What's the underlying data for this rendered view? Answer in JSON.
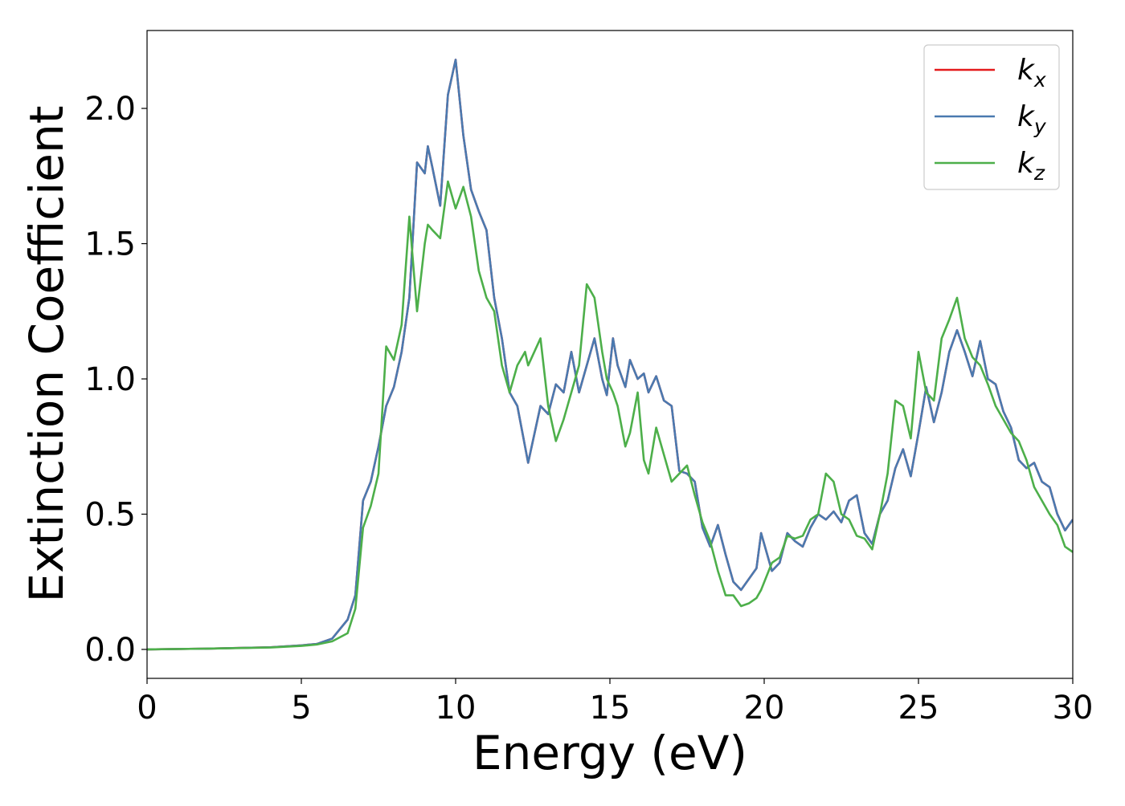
{
  "chart_data": {
    "type": "line",
    "xlabel": "Energy (eV)",
    "ylabel": "Extinction Coefficient",
    "xlim": [
      0,
      30
    ],
    "xticks": [
      0,
      5,
      10,
      15,
      20,
      25,
      30
    ],
    "ylim": [
      -0.107,
      2.288
    ],
    "yticks": [
      {
        "value": 0,
        "label": "0.0"
      },
      0.5,
      {
        "value": 1,
        "label": "1.0"
      },
      1.5,
      {
        "value": 2,
        "label": "2.0"
      }
    ],
    "legend": "upper right",
    "x": [
      0,
      2,
      4,
      5,
      5.5,
      6,
      6.5,
      6.75,
      7,
      7.25,
      7.5,
      7.75,
      8,
      8.25,
      8.5,
      8.75,
      9,
      9.1,
      9.25,
      9.5,
      9.75,
      10,
      10.25,
      10.5,
      10.75,
      11,
      11.25,
      11.5,
      11.75,
      12,
      12.25,
      12.35,
      12.75,
      13,
      13.25,
      13.5,
      13.75,
      14,
      14.25,
      14.5,
      14.75,
      14.9,
      15.1,
      15.25,
      15.5,
      15.65,
      15.9,
      16.1,
      16.25,
      16.5,
      16.75,
      17,
      17.25,
      17.5,
      17.75,
      18,
      18.25,
      18.5,
      18.75,
      19,
      19.25,
      19.5,
      19.75,
      19.9,
      20.25,
      20.5,
      20.75,
      21,
      21.25,
      21.5,
      21.75,
      22,
      22.25,
      22.5,
      22.75,
      23,
      23.25,
      23.5,
      23.75,
      24,
      24.25,
      24.5,
      24.75,
      25,
      25.25,
      25.5,
      25.75,
      26,
      26.25,
      26.5,
      26.75,
      27,
      27.25,
      27.5,
      27.75,
      28,
      28.25,
      28.5,
      28.75,
      29,
      29.25,
      29.5,
      29.75,
      30
    ],
    "series": [
      {
        "name": "kx",
        "color": "#e41a1c",
        "values": [
          0,
          0.003,
          0.008,
          0.015,
          0.02,
          0.04,
          0.11,
          0.2,
          0.55,
          0.62,
          0.75,
          0.9,
          0.97,
          1.1,
          1.3,
          1.8,
          1.76,
          1.86,
          1.78,
          1.64,
          2.05,
          2.18,
          1.9,
          1.7,
          1.62,
          1.55,
          1.3,
          1.15,
          0.95,
          0.9,
          0.75,
          0.69,
          0.9,
          0.87,
          0.98,
          0.95,
          1.1,
          0.95,
          1.05,
          1.15,
          1.0,
          0.94,
          1.15,
          1.05,
          0.97,
          1.07,
          1.0,
          1.02,
          0.95,
          1.01,
          0.92,
          0.9,
          0.66,
          0.65,
          0.62,
          0.45,
          0.38,
          0.46,
          0.35,
          0.25,
          0.22,
          0.26,
          0.3,
          0.43,
          0.29,
          0.32,
          0.43,
          0.4,
          0.38,
          0.45,
          0.5,
          0.48,
          0.51,
          0.47,
          0.55,
          0.57,
          0.43,
          0.39,
          0.5,
          0.55,
          0.67,
          0.74,
          0.64,
          0.8,
          0.97,
          0.84,
          0.95,
          1.1,
          1.18,
          1.1,
          1.01,
          1.14,
          1.0,
          0.98,
          0.88,
          0.82,
          0.7,
          0.67,
          0.69,
          0.62,
          0.6,
          0.5,
          0.44,
          0.48
        ]
      },
      {
        "name": "ky",
        "color": "#4a7ab0",
        "values": [
          0,
          0.003,
          0.008,
          0.015,
          0.02,
          0.04,
          0.11,
          0.2,
          0.55,
          0.62,
          0.75,
          0.9,
          0.97,
          1.1,
          1.3,
          1.8,
          1.76,
          1.86,
          1.78,
          1.64,
          2.05,
          2.18,
          1.9,
          1.7,
          1.62,
          1.55,
          1.3,
          1.15,
          0.95,
          0.9,
          0.75,
          0.69,
          0.9,
          0.87,
          0.98,
          0.95,
          1.1,
          0.95,
          1.05,
          1.15,
          1.0,
          0.94,
          1.15,
          1.05,
          0.97,
          1.07,
          1.0,
          1.02,
          0.95,
          1.01,
          0.92,
          0.9,
          0.66,
          0.65,
          0.62,
          0.45,
          0.38,
          0.46,
          0.35,
          0.25,
          0.22,
          0.26,
          0.3,
          0.43,
          0.29,
          0.32,
          0.43,
          0.4,
          0.38,
          0.45,
          0.5,
          0.48,
          0.51,
          0.47,
          0.55,
          0.57,
          0.43,
          0.39,
          0.5,
          0.55,
          0.67,
          0.74,
          0.64,
          0.8,
          0.97,
          0.84,
          0.95,
          1.1,
          1.18,
          1.1,
          1.01,
          1.14,
          1.0,
          0.98,
          0.88,
          0.82,
          0.7,
          0.67,
          0.69,
          0.62,
          0.6,
          0.5,
          0.44,
          0.48
        ]
      },
      {
        "name": "kz",
        "color": "#4daf4a",
        "values": [
          0,
          0.003,
          0.007,
          0.013,
          0.018,
          0.03,
          0.06,
          0.15,
          0.45,
          0.53,
          0.65,
          1.12,
          1.07,
          1.2,
          1.6,
          1.25,
          1.5,
          1.57,
          1.55,
          1.52,
          1.73,
          1.63,
          1.71,
          1.6,
          1.4,
          1.3,
          1.25,
          1.05,
          0.95,
          1.05,
          1.1,
          1.05,
          1.15,
          0.9,
          0.77,
          0.85,
          0.95,
          1.05,
          1.35,
          1.3,
          1.1,
          1.0,
          0.95,
          0.9,
          0.75,
          0.8,
          0.95,
          0.7,
          0.65,
          0.82,
          0.72,
          0.62,
          0.65,
          0.68,
          0.57,
          0.47,
          0.4,
          0.29,
          0.2,
          0.2,
          0.16,
          0.17,
          0.19,
          0.22,
          0.32,
          0.34,
          0.42,
          0.41,
          0.42,
          0.48,
          0.5,
          0.65,
          0.62,
          0.5,
          0.48,
          0.42,
          0.41,
          0.37,
          0.5,
          0.65,
          0.92,
          0.9,
          0.78,
          1.1,
          0.95,
          0.92,
          1.15,
          1.22,
          1.3,
          1.15,
          1.08,
          1.05,
          0.98,
          0.9,
          0.85,
          0.8,
          0.77,
          0.7,
          0.6,
          0.55,
          0.5,
          0.46,
          0.38,
          0.36
        ]
      }
    ]
  }
}
